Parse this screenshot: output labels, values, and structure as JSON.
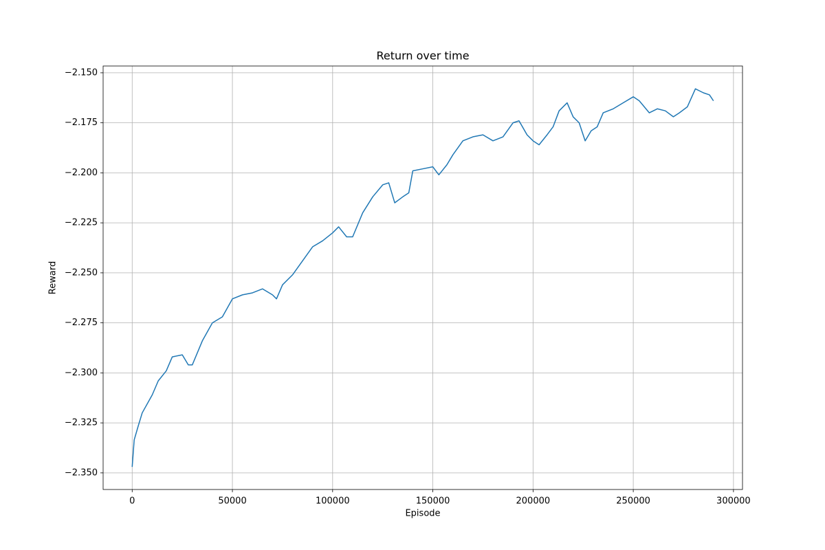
{
  "chart_data": {
    "type": "line",
    "title": "Return over time",
    "x_label": "Episode",
    "y_label": "Reward",
    "x": [
      0,
      1000,
      3000,
      5000,
      10000,
      13000,
      17000,
      20000,
      25000,
      28000,
      30000,
      35000,
      40000,
      45000,
      50000,
      55000,
      60000,
      65000,
      70000,
      72000,
      75000,
      80000,
      85000,
      90000,
      95000,
      100000,
      103000,
      107000,
      110000,
      115000,
      120000,
      125000,
      128000,
      131000,
      135000,
      138000,
      140000,
      145000,
      150000,
      153000,
      157000,
      160000,
      165000,
      170000,
      175000,
      180000,
      185000,
      190000,
      193000,
      197000,
      200000,
      203000,
      207000,
      210000,
      213000,
      217000,
      220000,
      223000,
      226000,
      229000,
      232000,
      235000,
      240000,
      245000,
      250000,
      253000,
      258000,
      262000,
      266000,
      270000,
      273000,
      277000,
      281000,
      285000,
      288000,
      290000
    ],
    "series": [
      {
        "name": "Reward",
        "color": "#1f77b4",
        "values": [
          -2.347,
          -2.3335,
          -2.3266,
          -2.32,
          -2.311,
          -2.304,
          -2.299,
          -2.292,
          -2.291,
          -2.296,
          -2.296,
          -2.284,
          -2.275,
          -2.272,
          -2.263,
          -2.261,
          -2.26,
          -2.258,
          -2.261,
          -2.263,
          -2.256,
          -2.251,
          -2.244,
          -2.237,
          -2.234,
          -2.23,
          -2.227,
          -2.232,
          -2.232,
          -2.22,
          -2.212,
          -2.206,
          -2.205,
          -2.215,
          -2.212,
          -2.21,
          -2.199,
          -2.198,
          -2.197,
          -2.201,
          -2.196,
          -2.191,
          -2.184,
          -2.182,
          -2.181,
          -2.184,
          -2.182,
          -2.175,
          -2.174,
          -2.181,
          -2.184,
          -2.186,
          -2.181,
          -2.177,
          -2.169,
          -2.165,
          -2.172,
          -2.175,
          -2.184,
          -2.179,
          -2.177,
          -2.17,
          -2.168,
          -2.165,
          -2.162,
          -2.164,
          -2.17,
          -2.168,
          -2.169,
          -2.172,
          -2.17,
          -2.167,
          -2.158,
          -2.16,
          -2.161,
          -2.164
        ]
      }
    ],
    "xlim": [
      -14500,
      304500
    ],
    "ylim": [
      -2.3583,
      -2.1466
    ],
    "xticks": [
      0,
      50000,
      100000,
      150000,
      200000,
      250000,
      300000
    ],
    "yticks": [
      {
        "value": -2.35,
        "label": "−2.350"
      },
      {
        "value": -2.325,
        "label": "−2.325"
      },
      {
        "value": -2.3,
        "label": "−2.300"
      },
      {
        "value": -2.275,
        "label": "−2.275"
      },
      {
        "value": -2.25,
        "label": "−2.250"
      },
      {
        "value": -2.225,
        "label": "−2.225"
      },
      {
        "value": -2.2,
        "label": "−2.200"
      },
      {
        "value": -2.175,
        "label": "−2.175"
      },
      {
        "value": -2.15,
        "label": "−2.150"
      }
    ],
    "grid": true
  }
}
